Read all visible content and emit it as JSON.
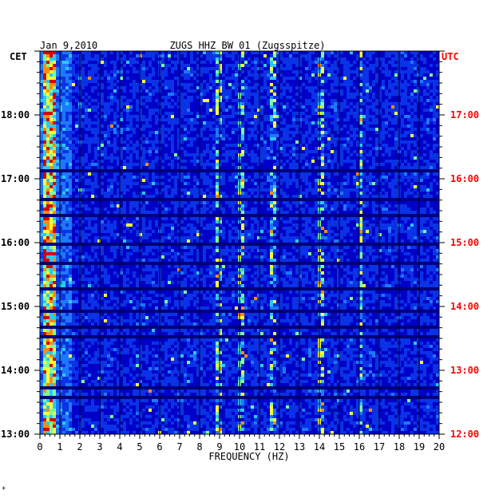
{
  "chart_data": {
    "type": "heatmap",
    "date": "Jan 9,2010",
    "title": "ZUGS HHZ BW 01 (Zugsspitze)",
    "xlabel": "FREQUENCY (HZ)",
    "xlim": [
      0,
      20
    ],
    "x_ticks": [
      "0",
      "1",
      "2",
      "3",
      "4",
      "5",
      "6",
      "7",
      "8",
      "9",
      "10",
      "11",
      "12",
      "13",
      "14",
      "15",
      "16",
      "17",
      "18",
      "19",
      "20"
    ],
    "left_axis": {
      "label": "CET",
      "ticks": [
        "18:00",
        "17:00",
        "16:00",
        "15:00",
        "14:00",
        "13:00"
      ],
      "tick_hours": [
        18,
        17,
        16,
        15,
        14,
        13
      ],
      "range_hours": [
        13,
        19
      ]
    },
    "right_axis": {
      "label": "UTC",
      "ticks": [
        "17:00",
        "16:00",
        "15:00",
        "14:00",
        "13:00",
        "12:00"
      ],
      "tick_hours": [
        17,
        16,
        15,
        14,
        13,
        12
      ],
      "range_hours": [
        12,
        18
      ]
    },
    "grid": true,
    "colormap": [
      "#00007a",
      "#0000c8",
      "#0a32e6",
      "#1e78ff",
      "#2cc8ff",
      "#7dff9a",
      "#ffff30",
      "#ff8c00",
      "#d80000"
    ],
    "colors": {
      "left_axis_text": "#000000",
      "right_axis_text": "#ff0000",
      "background": "#0000c8"
    },
    "features": {
      "low_freq_band_hz": [
        0.2,
        0.8
      ],
      "persistent_lines_hz": [
        9.0,
        10.1,
        11.7,
        14.1,
        16.1
      ],
      "quiet_rows_cet": [
        17.16,
        16.72,
        16.45,
        16.02,
        15.72,
        15.28,
        14.97,
        14.72,
        14.56,
        13.75,
        13.6
      ]
    }
  },
  "footer_mark": "*"
}
